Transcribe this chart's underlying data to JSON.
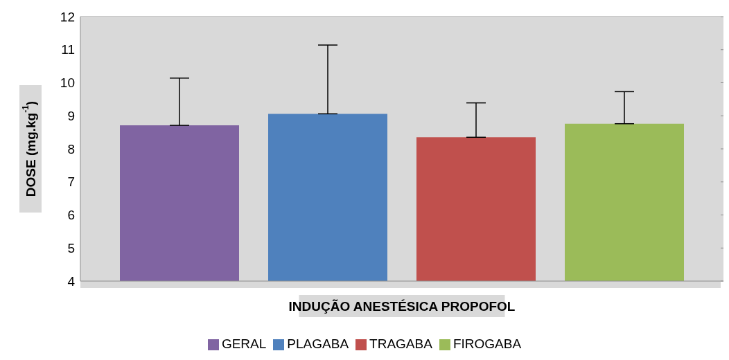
{
  "chart_data": {
    "type": "bar",
    "xlabel": "INDUÇÃO ANESTÉSICA PROPOFOL",
    "ylabel": "DOSE (mg.kg$^{-1}$)",
    "categories": [
      null
    ],
    "series": [
      {
        "name": "GERAL",
        "color": "#8064a2",
        "values": [
          8.71
        ],
        "errors": [
          1.43
        ]
      },
      {
        "name": "PLAGABA",
        "color": "#4f81bd",
        "values": [
          9.06
        ],
        "errors": [
          2.08
        ]
      },
      {
        "name": "TRAGABA",
        "color": "#c0504d",
        "values": [
          8.35
        ],
        "errors": [
          1.04
        ]
      },
      {
        "name": "FIROGABA",
        "color": "#9bbb59",
        "values": [
          8.76
        ],
        "errors": [
          0.97
        ]
      }
    ],
    "ylim": [
      4,
      12
    ],
    "yticks": [
      4,
      5,
      6,
      7,
      8,
      9,
      10,
      11,
      12
    ],
    "grid": "y",
    "legend": "bottom"
  }
}
